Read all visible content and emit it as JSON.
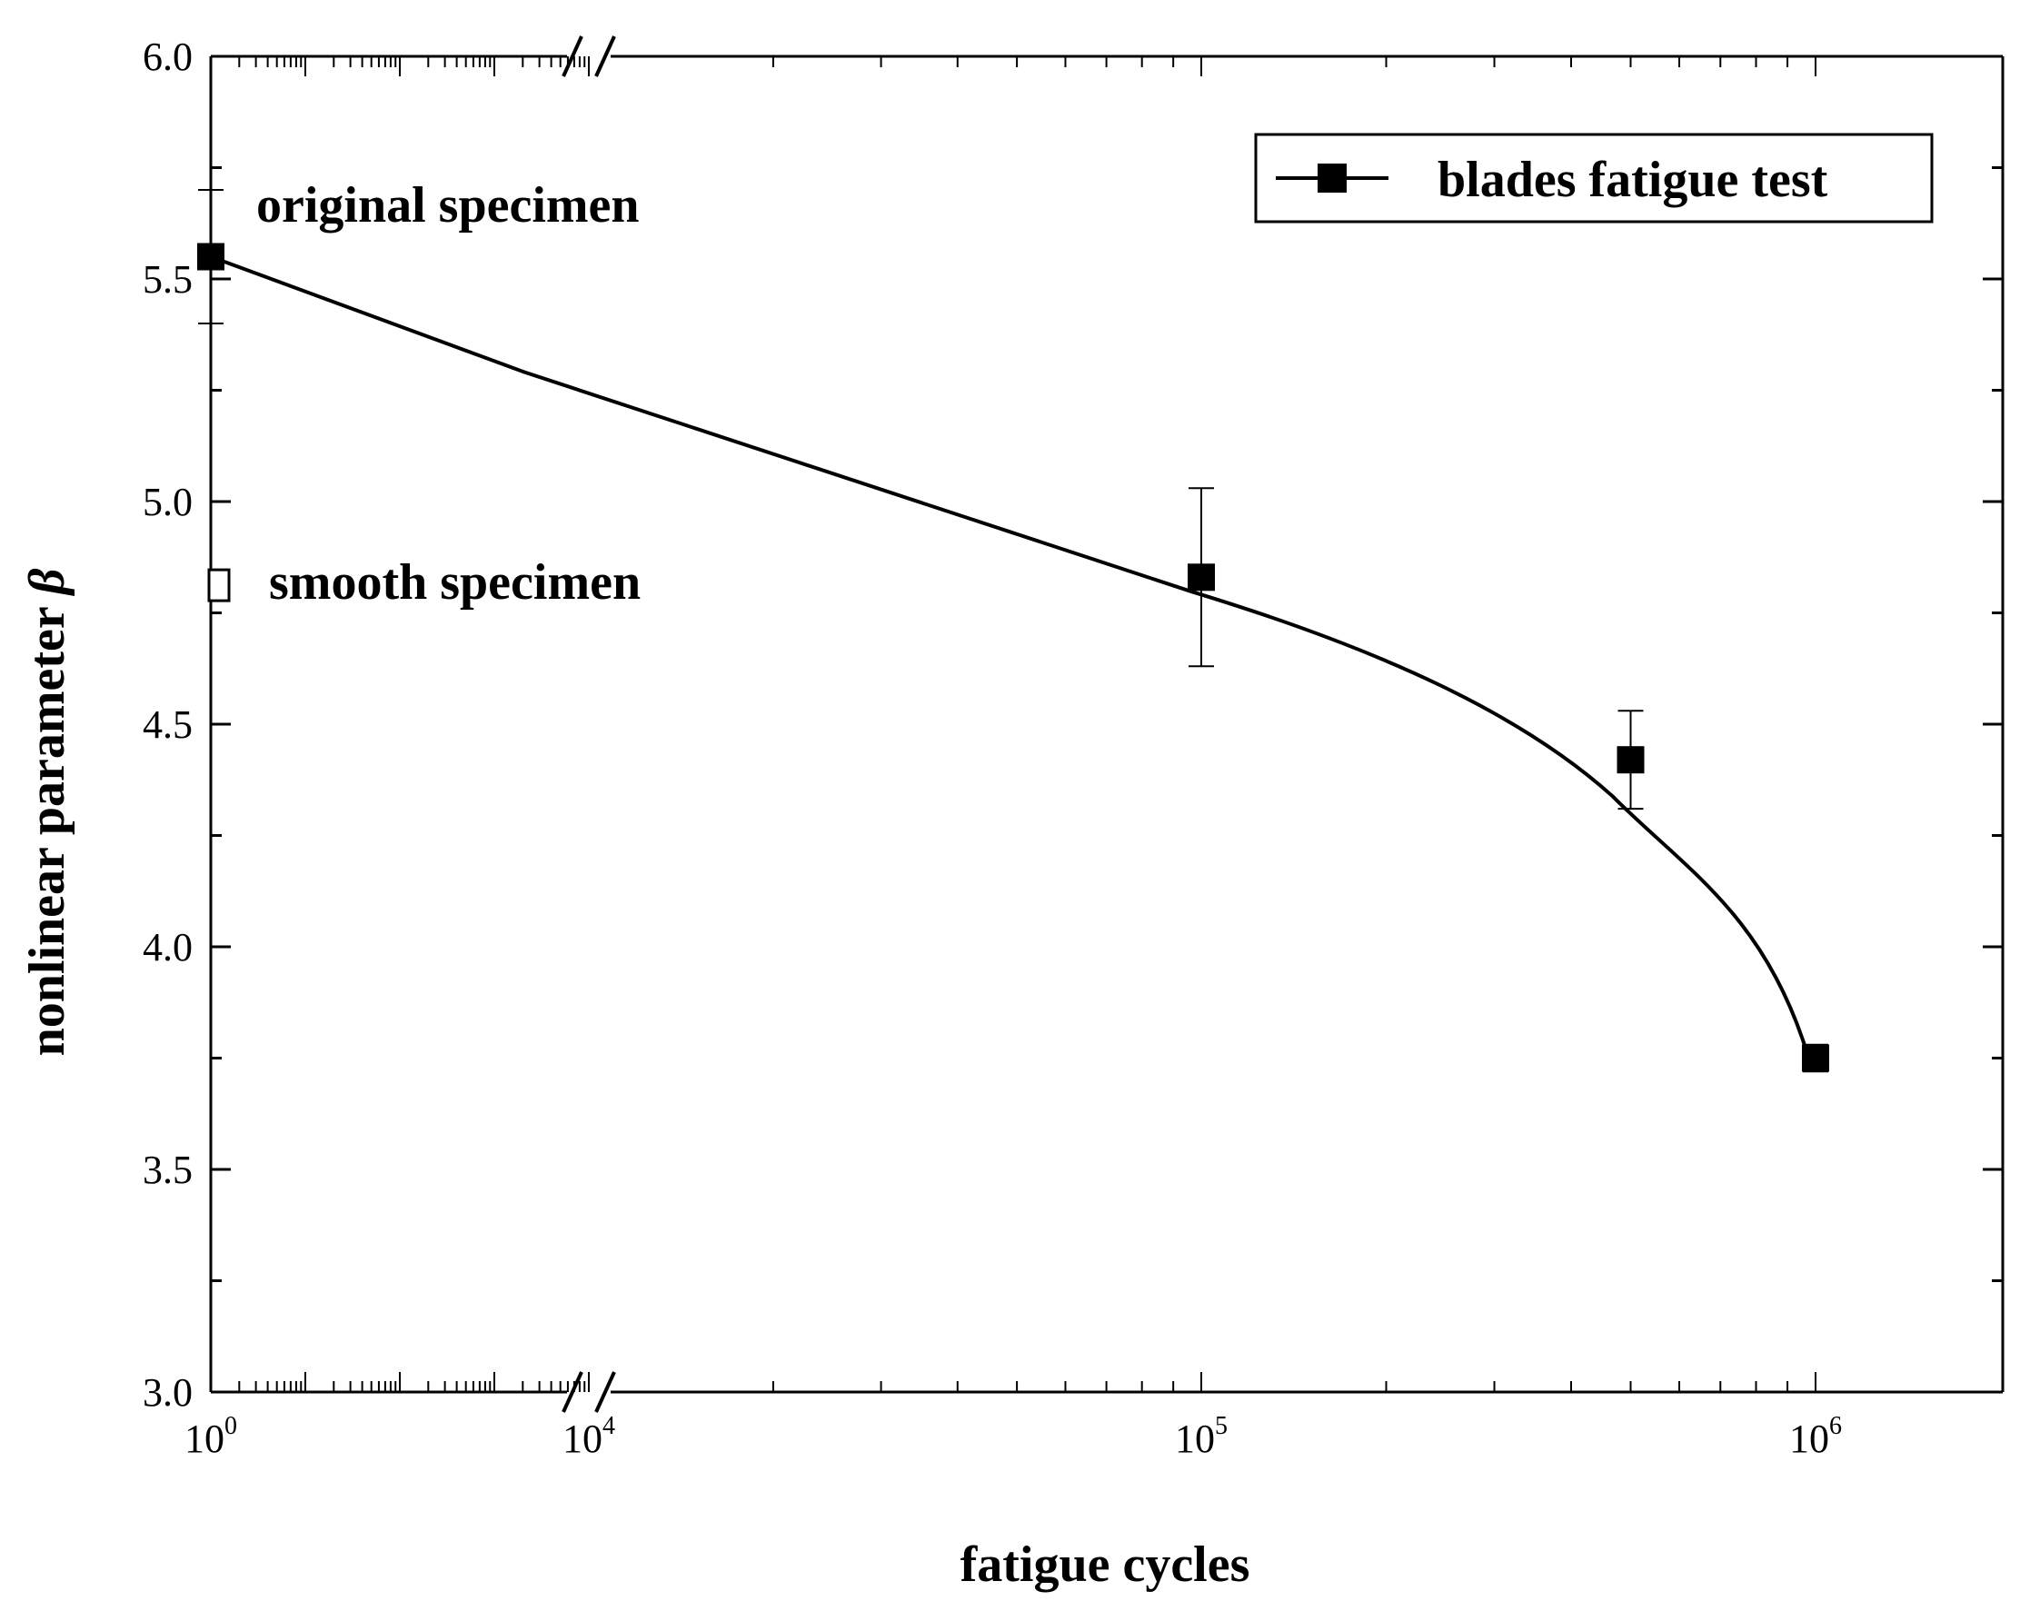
{
  "chart_data": {
    "type": "line",
    "title": "",
    "xlabel": "fatigue cycles",
    "ylabel": "nonlinear parameter",
    "ylabel_symbol": "β",
    "ylim": [
      3.0,
      6.0
    ],
    "y_ticks": [
      "3.0",
      "3.5",
      "4.0",
      "4.5",
      "5.0",
      "5.5",
      "6.0"
    ],
    "x_scale": "log with axis break between 10^4 and 10^4 (second segment linear)",
    "x_ticks": [
      {
        "base": "10",
        "exp": "0"
      },
      {
        "base": "10",
        "exp": "4"
      },
      {
        "base": "10",
        "exp": "5"
      },
      {
        "base": "10",
        "exp": "6"
      }
    ],
    "x_segment1": [
      1,
      10000
    ],
    "x_segment2": [
      10000,
      1500000
    ],
    "legend": {
      "label": "blades fatigue test",
      "position": "top-right"
    },
    "series": [
      {
        "name": "blades fatigue test",
        "marker": "filled-square",
        "points": [
          {
            "x": 1,
            "y": 5.55,
            "err": 0.15
          },
          {
            "x": 100000,
            "y": 4.83,
            "err": 0.2
          },
          {
            "x": 500000,
            "y": 4.42,
            "err": 0.11
          },
          {
            "x": 1000000,
            "y": 3.75,
            "err": 0.03
          }
        ]
      },
      {
        "name": "smooth specimen",
        "marker": "open-square",
        "points": [
          {
            "x": 1,
            "y": 4.81
          }
        ]
      }
    ],
    "annotations": [
      "original specimen",
      "smooth specimen"
    ]
  }
}
